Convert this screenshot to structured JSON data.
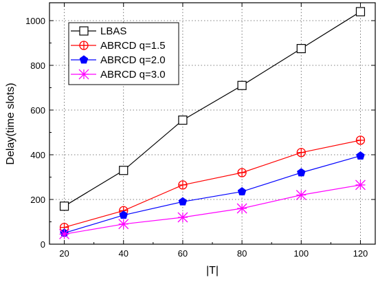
{
  "chart_data": {
    "type": "line",
    "title": "",
    "xlabel": "|T|",
    "ylabel": "Delay(time slots)",
    "xlim": [
      15,
      125
    ],
    "ylim": [
      0,
      1080
    ],
    "xticks": [
      20,
      40,
      60,
      80,
      100,
      120
    ],
    "yticks": [
      0,
      200,
      400,
      600,
      800,
      1000
    ],
    "grid": "dotted",
    "legend_position": "top-left",
    "x": [
      20,
      40,
      60,
      80,
      100,
      120
    ],
    "series": [
      {
        "name": "LBAS",
        "color": "#000000",
        "marker": "square",
        "values": [
          170,
          330,
          555,
          710,
          875,
          1040
        ]
      },
      {
        "name": "ABRCD q=1.5",
        "color": "#ff0000",
        "marker": "circle-plus",
        "values": [
          75,
          150,
          265,
          320,
          410,
          465
        ]
      },
      {
        "name": "ABRCD q=2.0",
        "color": "#0000ff",
        "marker": "pentagon",
        "values": [
          50,
          130,
          190,
          235,
          320,
          395
        ]
      },
      {
        "name": "ABRCD q=3.0",
        "color": "#ff00ff",
        "marker": "star",
        "values": [
          45,
          90,
          120,
          160,
          220,
          265
        ]
      }
    ]
  }
}
